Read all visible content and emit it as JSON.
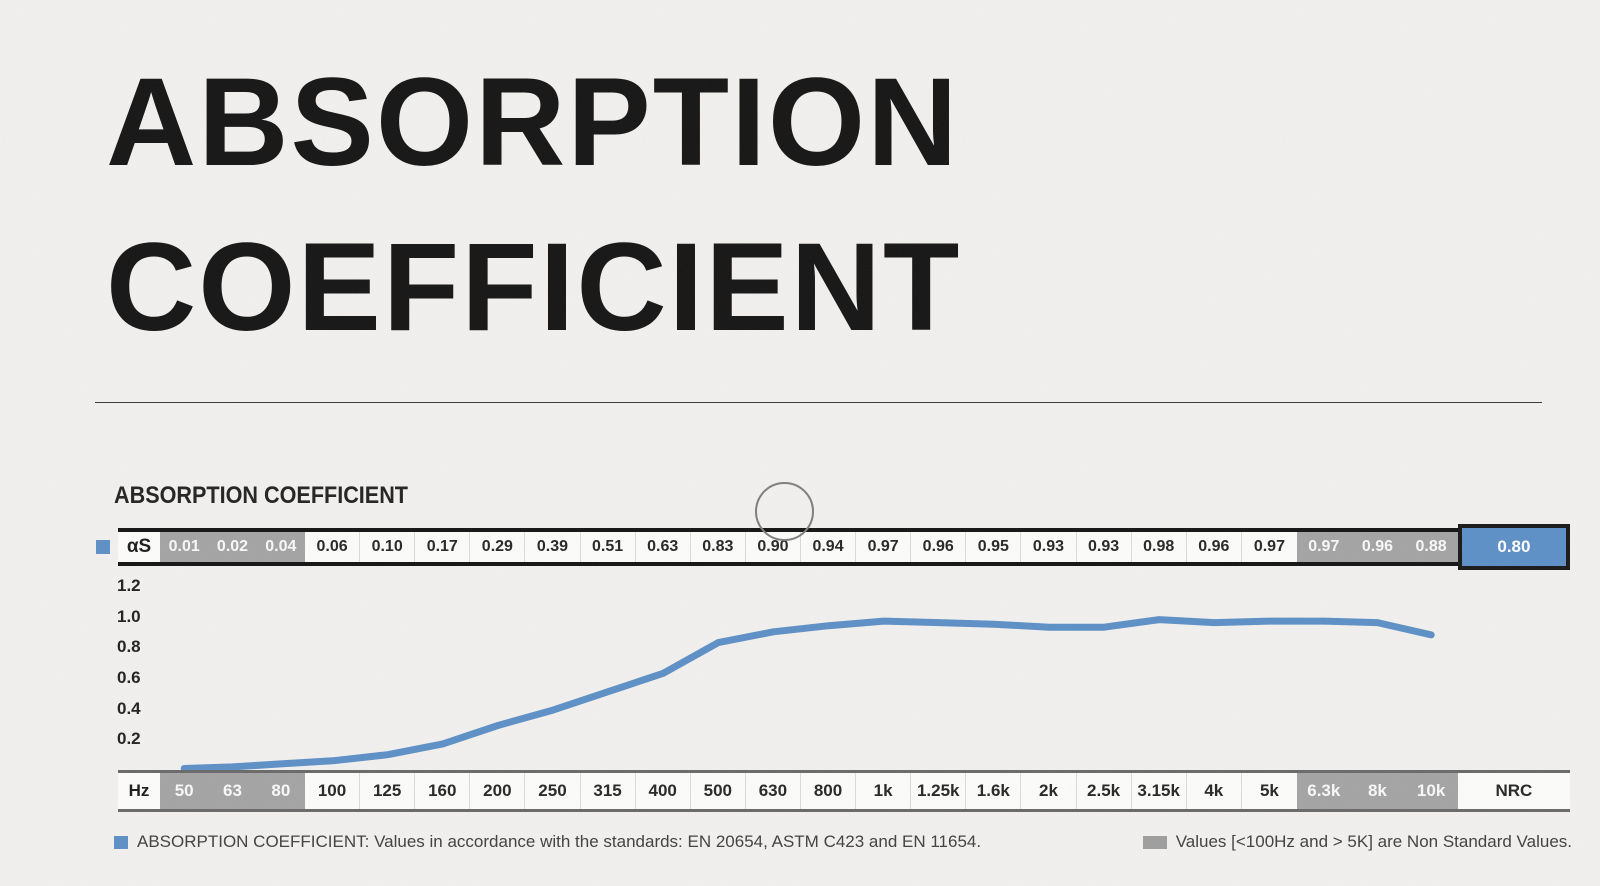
{
  "header": {
    "title_line1": "ABSORPTION",
    "title_line2": "COEFFICIENT"
  },
  "chart": {
    "heading": "ABSORPTION COEFFICIENT"
  },
  "chart_data": {
    "type": "line",
    "title": "ABSORPTION COEFFICIENT",
    "x_unit": "Hz",
    "categories": [
      "50",
      "63",
      "80",
      "100",
      "125",
      "160",
      "200",
      "250",
      "315",
      "400",
      "500",
      "630",
      "800",
      "1k",
      "1.25k",
      "1.6k",
      "2k",
      "2.5k",
      "3.15k",
      "4k",
      "5k",
      "6.3k",
      "8k",
      "10k"
    ],
    "series": [
      {
        "name": "αS",
        "values": [
          0.01,
          0.02,
          0.04,
          0.06,
          0.1,
          0.17,
          0.29,
          0.39,
          0.51,
          0.63,
          0.83,
          0.9,
          0.94,
          0.97,
          0.96,
          0.95,
          0.93,
          0.93,
          0.98,
          0.96,
          0.97,
          0.97,
          0.96,
          0.88
        ]
      }
    ],
    "nrc": {
      "label": "NRC",
      "value": 0.8
    },
    "yticks": [
      1.2,
      1.0,
      0.8,
      0.6,
      0.4,
      0.2
    ],
    "ylim": [
      0,
      1.2
    ],
    "grid": false,
    "legend_position": "left-of-row",
    "non_standard_categories": [
      "50",
      "63",
      "80",
      "6.3k",
      "8k",
      "10k"
    ]
  },
  "footnotes": {
    "standards": "ABSORPTION COEFFICIENT: Values in accordance with the standards: EN 20654, ASTM C423 and EN 11654.",
    "non_standard": "Values [<100Hz and > 5K] are Non Standard Values."
  },
  "colors": {
    "accent_blue": "#5e90c6",
    "non_standard_gray": "#a4a4a4",
    "background": "#f1f0ee"
  }
}
